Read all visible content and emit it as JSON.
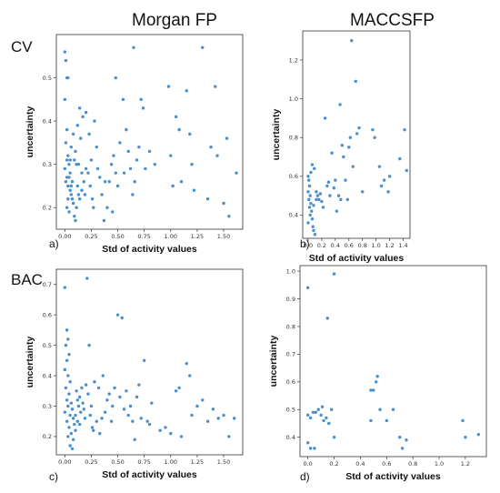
{
  "headers": {
    "left": "Morgan FP",
    "right": "MACCSFP"
  },
  "row_labels": {
    "top": "CV",
    "bottom": "BAC"
  },
  "colors": {
    "point": "#4a8fcd",
    "frame": "#333333"
  },
  "chart_data": [
    {
      "type": "scatter",
      "panel_label": "a)",
      "xlabel": "Std of activity values",
      "ylabel": "uncertainty",
      "xlim": [
        -0.08,
        1.68
      ],
      "ylim": [
        0.15,
        0.6
      ],
      "xticks": [
        0.0,
        0.25,
        0.5,
        0.75,
        1.0,
        1.25,
        1.5
      ],
      "xticklabels": [
        "0.00",
        "0.25",
        "0.50",
        "0.75",
        "1.00",
        "1.25",
        "1.50"
      ],
      "yticks": [
        0.2,
        0.3,
        0.4,
        0.5
      ],
      "yticklabels": [
        "0.2",
        "0.3",
        "0.4",
        "0.5"
      ],
      "points": [
        [
          0.0,
          0.56
        ],
        [
          0.01,
          0.54
        ],
        [
          0.02,
          0.5
        ],
        [
          0.03,
          0.5
        ],
        [
          0.0,
          0.45
        ],
        [
          0.02,
          0.38
        ],
        [
          0.01,
          0.35
        ],
        [
          0.03,
          0.32
        ],
        [
          0.04,
          0.3
        ],
        [
          0.0,
          0.29
        ],
        [
          0.02,
          0.27
        ],
        [
          0.01,
          0.26
        ],
        [
          0.03,
          0.25
        ],
        [
          0.05,
          0.24
        ],
        [
          0.06,
          0.23
        ],
        [
          0.07,
          0.22
        ],
        [
          0.08,
          0.21
        ],
        [
          0.02,
          0.2
        ],
        [
          0.04,
          0.19
        ],
        [
          0.09,
          0.18
        ],
        [
          0.1,
          0.17
        ],
        [
          0.05,
          0.28
        ],
        [
          0.07,
          0.26
        ],
        [
          0.09,
          0.31
        ],
        [
          0.11,
          0.3
        ],
        [
          0.12,
          0.25
        ],
        [
          0.13,
          0.23
        ],
        [
          0.14,
          0.22
        ],
        [
          0.16,
          0.24
        ],
        [
          0.18,
          0.26
        ],
        [
          0.2,
          0.29
        ],
        [
          0.22,
          0.28
        ],
        [
          0.24,
          0.25
        ],
        [
          0.26,
          0.22
        ],
        [
          0.27,
          0.2
        ],
        [
          0.15,
          0.36
        ],
        [
          0.12,
          0.39
        ],
        [
          0.17,
          0.41
        ],
        [
          0.14,
          0.43
        ],
        [
          0.2,
          0.42
        ],
        [
          0.23,
          0.37
        ],
        [
          0.28,
          0.4
        ],
        [
          0.3,
          0.34
        ],
        [
          0.33,
          0.27
        ],
        [
          0.35,
          0.23
        ],
        [
          0.37,
          0.17
        ],
        [
          0.4,
          0.2
        ],
        [
          0.42,
          0.26
        ],
        [
          0.44,
          0.3
        ],
        [
          0.46,
          0.32
        ],
        [
          0.48,
          0.28
        ],
        [
          0.5,
          0.25
        ],
        [
          0.52,
          0.35
        ],
        [
          0.48,
          0.5
        ],
        [
          0.55,
          0.45
        ],
        [
          0.58,
          0.38
        ],
        [
          0.6,
          0.33
        ],
        [
          0.62,
          0.29
        ],
        [
          0.64,
          0.23
        ],
        [
          0.65,
          0.57
        ],
        [
          0.68,
          0.31
        ],
        [
          0.7,
          0.34
        ],
        [
          0.72,
          0.45
        ],
        [
          0.74,
          0.43
        ],
        [
          0.76,
          0.29
        ],
        [
          0.8,
          0.33
        ],
        [
          0.85,
          0.3
        ],
        [
          0.98,
          0.48
        ],
        [
          1.0,
          0.32
        ],
        [
          1.02,
          0.25
        ],
        [
          1.05,
          0.41
        ],
        [
          1.08,
          0.38
        ],
        [
          1.1,
          0.26
        ],
        [
          1.15,
          0.47
        ],
        [
          1.18,
          0.37
        ],
        [
          1.2,
          0.3
        ],
        [
          1.22,
          0.24
        ],
        [
          1.3,
          0.57
        ],
        [
          1.35,
          0.22
        ],
        [
          1.38,
          0.34
        ],
        [
          1.42,
          0.48
        ],
        [
          1.44,
          0.32
        ],
        [
          1.5,
          0.21
        ],
        [
          1.53,
          0.36
        ],
        [
          1.55,
          0.18
        ],
        [
          1.62,
          0.28
        ],
        [
          0.06,
          0.34
        ],
        [
          0.08,
          0.37
        ],
        [
          0.1,
          0.33
        ],
        [
          0.03,
          0.22
        ],
        [
          0.05,
          0.31
        ],
        [
          0.19,
          0.23
        ],
        [
          0.25,
          0.31
        ],
        [
          0.31,
          0.29
        ],
        [
          0.38,
          0.26
        ],
        [
          0.45,
          0.19
        ],
        [
          0.56,
          0.28
        ],
        [
          0.66,
          0.26
        ],
        [
          0.02,
          0.31
        ],
        [
          0.04,
          0.27
        ],
        [
          0.06,
          0.25
        ],
        [
          0.11,
          0.2
        ],
        [
          0.13,
          0.3
        ],
        [
          0.16,
          0.28
        ]
      ]
    },
    {
      "type": "scatter",
      "panel_label": "b)",
      "xlabel": "Std of activity values",
      "ylabel": "uncertainty",
      "xlim": [
        -0.08,
        1.5
      ],
      "ylim": [
        0.28,
        1.35
      ],
      "xticks": [
        0.0,
        0.2,
        0.4,
        0.6,
        0.8,
        1.0,
        1.2,
        1.4
      ],
      "xticklabels": [
        "0.0",
        "0.2",
        "0.4",
        "0.6",
        "0.8",
        "1.0",
        "1.2",
        "1.4"
      ],
      "yticks": [
        0.4,
        0.6,
        0.8,
        1.0,
        1.2
      ],
      "yticklabels": [
        "0.4",
        "0.6",
        "0.8",
        "1.0",
        "1.2"
      ],
      "points": [
        [
          0.0,
          0.6
        ],
        [
          0.01,
          0.58
        ],
        [
          0.02,
          0.55
        ],
        [
          0.0,
          0.52
        ],
        [
          0.03,
          0.5
        ],
        [
          0.01,
          0.48
        ],
        [
          0.04,
          0.46
        ],
        [
          0.02,
          0.44
        ],
        [
          0.05,
          0.42
        ],
        [
          0.03,
          0.4
        ],
        [
          0.06,
          0.38
        ],
        [
          0.0,
          0.36
        ],
        [
          0.07,
          0.34
        ],
        [
          0.08,
          0.32
        ],
        [
          0.1,
          0.3
        ],
        [
          0.04,
          0.62
        ],
        [
          0.06,
          0.66
        ],
        [
          0.09,
          0.64
        ],
        [
          0.12,
          0.52
        ],
        [
          0.14,
          0.5
        ],
        [
          0.16,
          0.48
        ],
        [
          0.18,
          0.51
        ],
        [
          0.2,
          0.47
        ],
        [
          0.22,
          0.44
        ],
        [
          0.25,
          0.9
        ],
        [
          0.28,
          0.55
        ],
        [
          0.3,
          0.57
        ],
        [
          0.32,
          0.5
        ],
        [
          0.35,
          0.72
        ],
        [
          0.38,
          0.54
        ],
        [
          0.4,
          0.58
        ],
        [
          0.42,
          0.42
        ],
        [
          0.45,
          0.5
        ],
        [
          0.47,
          0.97
        ],
        [
          0.5,
          0.76
        ],
        [
          0.52,
          0.7
        ],
        [
          0.55,
          0.58
        ],
        [
          0.58,
          0.48
        ],
        [
          0.6,
          0.75
        ],
        [
          0.62,
          0.8
        ],
        [
          0.64,
          1.3
        ],
        [
          0.66,
          0.65
        ],
        [
          0.7,
          1.09
        ],
        [
          0.72,
          0.82
        ],
        [
          0.75,
          0.85
        ],
        [
          0.8,
          0.52
        ],
        [
          0.95,
          0.84
        ],
        [
          0.98,
          0.8
        ],
        [
          1.05,
          0.65
        ],
        [
          1.08,
          0.55
        ],
        [
          1.12,
          0.58
        ],
        [
          1.18,
          0.52
        ],
        [
          1.2,
          0.6
        ],
        [
          1.35,
          0.69
        ],
        [
          1.42,
          0.84
        ],
        [
          1.45,
          0.63
        ],
        [
          0.48,
          0.48
        ],
        [
          0.12,
          0.48
        ],
        [
          0.08,
          0.45
        ]
      ]
    },
    {
      "type": "scatter",
      "panel_label": "c)",
      "xlabel": "Std of activity values",
      "ylabel": "uncertainty",
      "xlim": [
        -0.08,
        1.68
      ],
      "ylim": [
        0.14,
        0.75
      ],
      "xticks": [
        0.0,
        0.25,
        0.5,
        0.75,
        1.0,
        1.25,
        1.5
      ],
      "xticklabels": [
        "0.00",
        "0.25",
        "0.50",
        "0.75",
        "1.00",
        "1.25",
        "1.50"
      ],
      "yticks": [
        0.2,
        0.3,
        0.4,
        0.5,
        0.6,
        0.7
      ],
      "yticklabels": [
        "0.2",
        "0.3",
        "0.4",
        "0.5",
        "0.6",
        "0.7"
      ],
      "points": [
        [
          0.0,
          0.69
        ],
        [
          0.02,
          0.55
        ],
        [
          0.03,
          0.52
        ],
        [
          0.01,
          0.5
        ],
        [
          0.04,
          0.47
        ],
        [
          0.02,
          0.45
        ],
        [
          0.0,
          0.42
        ],
        [
          0.03,
          0.4
        ],
        [
          0.05,
          0.38
        ],
        [
          0.01,
          0.36
        ],
        [
          0.04,
          0.34
        ],
        [
          0.02,
          0.32
        ],
        [
          0.06,
          0.31
        ],
        [
          0.03,
          0.3
        ],
        [
          0.07,
          0.29
        ],
        [
          0.0,
          0.28
        ],
        [
          0.05,
          0.27
        ],
        [
          0.08,
          0.26
        ],
        [
          0.02,
          0.25
        ],
        [
          0.09,
          0.24
        ],
        [
          0.04,
          0.23
        ],
        [
          0.1,
          0.22
        ],
        [
          0.06,
          0.21
        ],
        [
          0.03,
          0.2
        ],
        [
          0.08,
          0.19
        ],
        [
          0.05,
          0.17
        ],
        [
          0.07,
          0.16
        ],
        [
          0.11,
          0.35
        ],
        [
          0.12,
          0.32
        ],
        [
          0.13,
          0.3
        ],
        [
          0.14,
          0.33
        ],
        [
          0.15,
          0.28
        ],
        [
          0.16,
          0.36
        ],
        [
          0.17,
          0.31
        ],
        [
          0.18,
          0.29
        ],
        [
          0.2,
          0.37
        ],
        [
          0.21,
          0.72
        ],
        [
          0.22,
          0.34
        ],
        [
          0.23,
          0.5
        ],
        [
          0.24,
          0.27
        ],
        [
          0.25,
          0.3
        ],
        [
          0.27,
          0.22
        ],
        [
          0.3,
          0.25
        ],
        [
          0.32,
          0.36
        ],
        [
          0.35,
          0.26
        ],
        [
          0.38,
          0.28
        ],
        [
          0.4,
          0.32
        ],
        [
          0.42,
          0.34
        ],
        [
          0.45,
          0.3
        ],
        [
          0.47,
          0.36
        ],
        [
          0.5,
          0.6
        ],
        [
          0.52,
          0.33
        ],
        [
          0.54,
          0.59
        ],
        [
          0.56,
          0.29
        ],
        [
          0.58,
          0.35
        ],
        [
          0.6,
          0.27
        ],
        [
          0.62,
          0.3
        ],
        [
          0.64,
          0.25
        ],
        [
          0.66,
          0.19
        ],
        [
          0.68,
          0.33
        ],
        [
          0.7,
          0.37
        ],
        [
          0.72,
          0.26
        ],
        [
          0.75,
          0.45
        ],
        [
          0.78,
          0.25
        ],
        [
          0.8,
          0.24
        ],
        [
          0.82,
          0.31
        ],
        [
          0.9,
          0.22
        ],
        [
          0.95,
          0.23
        ],
        [
          1.0,
          0.21
        ],
        [
          1.05,
          0.35
        ],
        [
          1.08,
          0.36
        ],
        [
          1.1,
          0.2
        ],
        [
          1.15,
          0.44
        ],
        [
          1.18,
          0.4
        ],
        [
          1.2,
          0.27
        ],
        [
          1.25,
          0.3
        ],
        [
          1.3,
          0.32
        ],
        [
          1.35,
          0.25
        ],
        [
          1.4,
          0.29
        ],
        [
          1.45,
          0.26
        ],
        [
          1.5,
          0.27
        ],
        [
          1.55,
          0.2
        ],
        [
          1.6,
          0.26
        ],
        [
          0.1,
          0.27
        ],
        [
          0.12,
          0.25
        ],
        [
          0.14,
          0.24
        ],
        [
          0.19,
          0.26
        ],
        [
          0.26,
          0.23
        ],
        [
          0.33,
          0.21
        ],
        [
          0.36,
          0.4
        ],
        [
          0.28,
          0.38
        ],
        [
          0.44,
          0.25
        ]
      ]
    },
    {
      "type": "scatter",
      "panel_label": "d)",
      "xlabel": "Std of activity values",
      "ylabel": "uncertainty",
      "xlim": [
        -0.06,
        1.36
      ],
      "ylim": [
        0.33,
        1.02
      ],
      "xticks": [
        0.0,
        0.2,
        0.4,
        0.6,
        0.8,
        1.0,
        1.2
      ],
      "xticklabels": [
        "0.0",
        "0.2",
        "0.4",
        "0.6",
        "0.8",
        "1.0",
        "1.2"
      ],
      "yticks": [
        0.4,
        0.5,
        0.6,
        0.7,
        0.8,
        0.9,
        1.0
      ],
      "yticklabels": [
        "0.4",
        "0.5",
        "0.6",
        "0.7",
        "0.8",
        "0.9",
        "1.0"
      ],
      "points": [
        [
          0.0,
          0.94
        ],
        [
          0.2,
          0.99
        ],
        [
          0.15,
          0.83
        ],
        [
          0.0,
          0.48
        ],
        [
          0.02,
          0.47
        ],
        [
          0.04,
          0.49
        ],
        [
          0.0,
          0.38
        ],
        [
          0.02,
          0.36
        ],
        [
          0.05,
          0.36
        ],
        [
          0.08,
          0.5
        ],
        [
          0.1,
          0.48
        ],
        [
          0.12,
          0.46
        ],
        [
          0.14,
          0.47
        ],
        [
          0.16,
          0.45
        ],
        [
          0.18,
          0.5
        ],
        [
          0.2,
          0.4
        ],
        [
          0.48,
          0.57
        ],
        [
          0.5,
          0.57
        ],
        [
          0.52,
          0.6
        ],
        [
          0.53,
          0.62
        ],
        [
          0.48,
          0.46
        ],
        [
          0.55,
          0.5
        ],
        [
          0.6,
          0.46
        ],
        [
          0.65,
          0.5
        ],
        [
          0.7,
          0.4
        ],
        [
          0.72,
          0.36
        ],
        [
          0.75,
          0.39
        ],
        [
          1.18,
          0.46
        ],
        [
          1.2,
          0.4
        ],
        [
          1.3,
          0.41
        ],
        [
          0.06,
          0.49
        ],
        [
          0.11,
          0.51
        ]
      ]
    }
  ]
}
